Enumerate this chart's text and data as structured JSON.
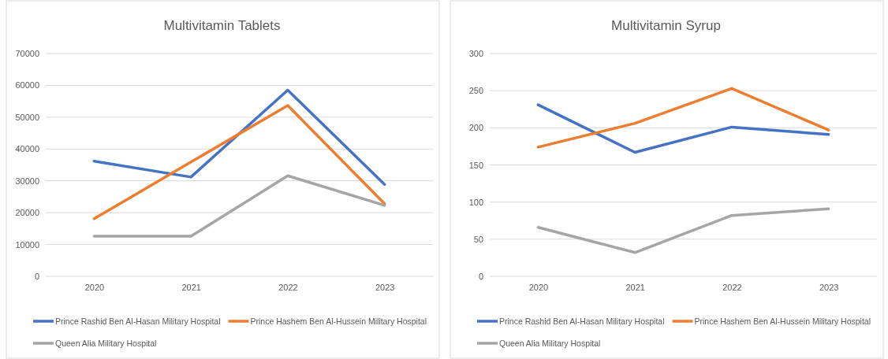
{
  "chart_data": [
    {
      "type": "line",
      "title": "Multivitamin Tablets",
      "categories": [
        "2020",
        "2021",
        "2022",
        "2023"
      ],
      "ylim": [
        0,
        70000
      ],
      "yticks": [
        0,
        10000,
        20000,
        30000,
        40000,
        50000,
        60000,
        70000
      ],
      "grid": "y",
      "legend": "bottom",
      "marker": "none",
      "series": [
        {
          "name": "Prince Rashid Ben Al-Hasan Military Hospital",
          "color": "#4472c4",
          "values": [
            36200,
            31200,
            58500,
            28900
          ]
        },
        {
          "name": "Prince Hashem Ben Al-Hussein Military Hospital",
          "color": "#ed7d31",
          "values": [
            18100,
            35900,
            53700,
            22800
          ]
        },
        {
          "name": "Queen Alia Military Hospital",
          "color": "#a5a5a5",
          "values": [
            12600,
            12600,
            31600,
            22300
          ]
        }
      ]
    },
    {
      "type": "line",
      "title": "Multivitamin Syrup",
      "categories": [
        "2020",
        "2021",
        "2022",
        "2023"
      ],
      "ylim": [
        0,
        300
      ],
      "yticks": [
        0,
        50,
        100,
        150,
        200,
        250,
        300
      ],
      "grid": "y",
      "legend": "bottom",
      "marker": "none",
      "series": [
        {
          "name": "Prince Rashid Ben Al-Hasan Military Hospital",
          "color": "#4472c4",
          "values": [
            231,
            167,
            201,
            191
          ]
        },
        {
          "name": "Prince Hashem Ben Al-Hussein Military Hospital",
          "color": "#ed7d31",
          "values": [
            174,
            206,
            253,
            197
          ]
        },
        {
          "name": "Queen Alia Military Hospital",
          "color": "#a5a5a5",
          "values": [
            66,
            32,
            82,
            91
          ]
        }
      ]
    }
  ]
}
